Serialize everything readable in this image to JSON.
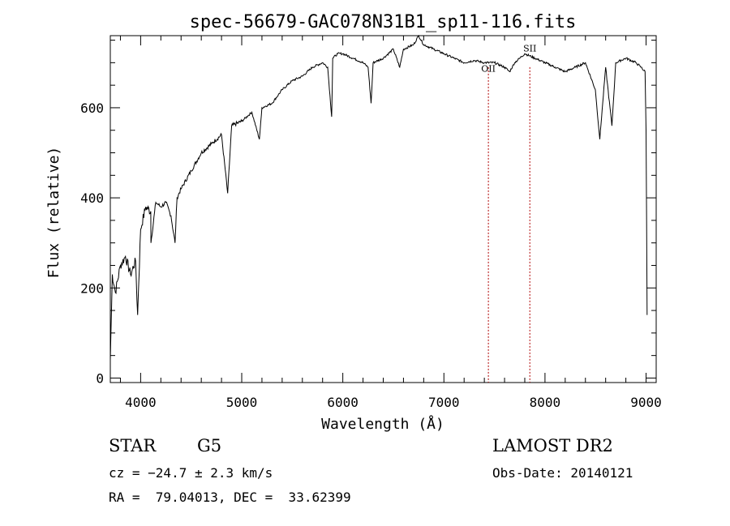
{
  "chart_data": {
    "type": "line",
    "title": "spec-56679-GAC078N31B1_sp11-116.fits",
    "xlabel": "Wavelength (Å)",
    "ylabel": "Flux (relative)",
    "xlim": [
      3700,
      9100
    ],
    "ylim": [
      -10,
      760
    ],
    "xticks": [
      4000,
      5000,
      6000,
      7000,
      8000,
      9000
    ],
    "xtick_labels": [
      "4000",
      "5000",
      "6000",
      "7000",
      "8000",
      "9000"
    ],
    "yticks": [
      0,
      200,
      400,
      600
    ],
    "ytick_labels": [
      "0",
      "200",
      "400",
      "600"
    ],
    "grid": false,
    "x": [
      3700,
      3720,
      3750,
      3800,
      3850,
      3900,
      3950,
      3970,
      4000,
      4050,
      4100,
      4102,
      4150,
      4200,
      4250,
      4300,
      4340,
      4360,
      4400,
      4500,
      4600,
      4700,
      4800,
      4861,
      4900,
      5000,
      5100,
      5175,
      5200,
      5300,
      5400,
      5500,
      5600,
      5700,
      5800,
      5850,
      5890,
      5900,
      5950,
      6000,
      6100,
      6200,
      6250,
      6280,
      6300,
      6400,
      6500,
      6563,
      6600,
      6700,
      6750,
      6800,
      6900,
      7000,
      7100,
      7200,
      7300,
      7400,
      7500,
      7600,
      7650,
      7700,
      7750,
      7800,
      7900,
      8000,
      8100,
      8200,
      8300,
      8400,
      8498,
      8542,
      8600,
      8662,
      8700,
      8800,
      8900,
      8950,
      8990,
      9000,
      9010
    ],
    "y": [
      40,
      230,
      190,
      250,
      270,
      230,
      260,
      140,
      330,
      380,
      370,
      300,
      390,
      380,
      390,
      360,
      300,
      400,
      420,
      460,
      500,
      520,
      540,
      410,
      560,
      570,
      590,
      530,
      600,
      610,
      640,
      660,
      670,
      690,
      700,
      690,
      580,
      710,
      720,
      720,
      710,
      700,
      690,
      610,
      700,
      710,
      730,
      690,
      730,
      740,
      760,
      740,
      730,
      720,
      710,
      700,
      705,
      700,
      700,
      690,
      680,
      700,
      710,
      720,
      710,
      700,
      690,
      680,
      690,
      700,
      640,
      530,
      690,
      560,
      700,
      710,
      700,
      690,
      680,
      550,
      140
    ],
    "annotations": [
      {
        "label": "OII",
        "x": 7440
      },
      {
        "label": "SII",
        "x": 7850
      }
    ]
  },
  "footer": {
    "class_label": "STAR",
    "subclass": "G5",
    "survey": "LAMOST DR2",
    "cz": "cz = −24.7 ± 2.3 km/s",
    "obs_date": "Obs-Date: 20140121",
    "coords": "RA =  79.04013, DEC =  33.62399"
  }
}
